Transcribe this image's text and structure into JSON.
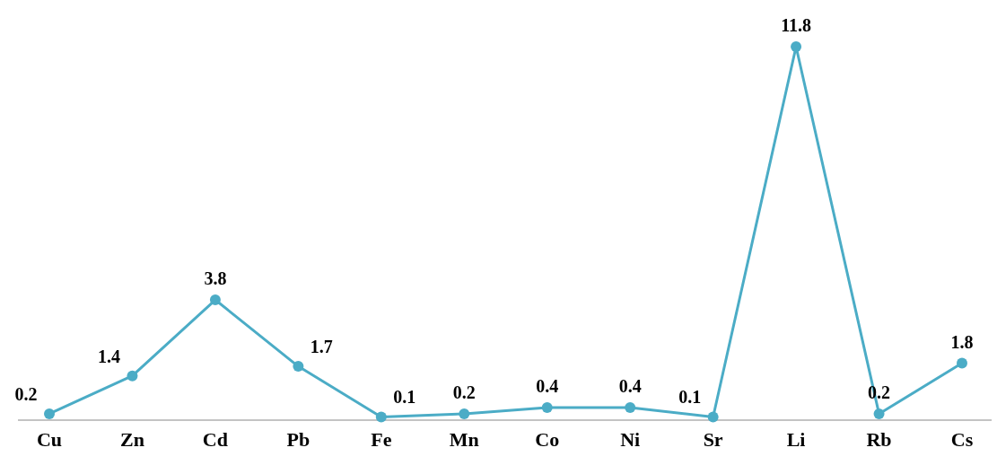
{
  "chart_data": {
    "type": "line",
    "categories": [
      "Cu",
      "Zn",
      "Cd",
      "Pb",
      "Fe",
      "Mn",
      "Co",
      "Ni",
      "Sr",
      "Li",
      "Rb",
      "Cs"
    ],
    "series": [
      {
        "color": "#4bacc6",
        "values": [
          0.2,
          1.4,
          3.8,
          1.7,
          0.1,
          0.2,
          0.4,
          0.4,
          0.1,
          11.8,
          0.2,
          1.8
        ]
      }
    ],
    "data_labels": true,
    "marker": "circle"
  }
}
